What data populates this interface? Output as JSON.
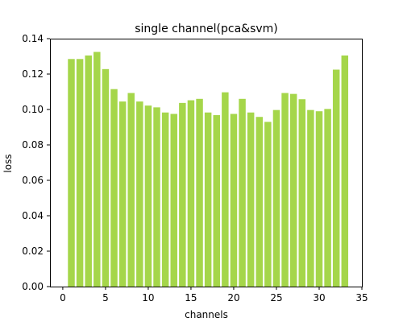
{
  "chart_data": {
    "type": "bar",
    "title": "single channel(pca&svm)",
    "xlabel": "channels",
    "ylabel": "loss",
    "xlim": [
      -1.5,
      35
    ],
    "ylim": [
      0,
      0.14
    ],
    "x": [
      1,
      2,
      3,
      4,
      5,
      6,
      7,
      8,
      9,
      10,
      11,
      12,
      13,
      14,
      15,
      16,
      17,
      18,
      19,
      20,
      21,
      22,
      23,
      24,
      25,
      26,
      27,
      28,
      29,
      30,
      31,
      32,
      33
    ],
    "values": [
      0.1285,
      0.1285,
      0.1305,
      0.1325,
      0.1228,
      0.1115,
      0.1045,
      0.1093,
      0.1045,
      0.1022,
      0.1012,
      0.0983,
      0.0975,
      0.1037,
      0.1052,
      0.106,
      0.0983,
      0.0968,
      0.1097,
      0.0975,
      0.106,
      0.0983,
      0.0958,
      0.093,
      0.0997,
      0.1093,
      0.1088,
      0.1058,
      0.0997,
      0.099,
      0.1003,
      0.1225,
      0.1305
    ],
    "bar_color": "#a5d64a",
    "x_ticks": [
      {
        "value": 0,
        "label": "0"
      },
      {
        "value": 5,
        "label": "5"
      },
      {
        "value": 10,
        "label": "10"
      },
      {
        "value": 15,
        "label": "15"
      },
      {
        "value": 20,
        "label": "20"
      },
      {
        "value": 25,
        "label": "25"
      },
      {
        "value": 30,
        "label": "30"
      },
      {
        "value": 35,
        "label": "35"
      }
    ],
    "y_ticks": [
      {
        "value": 0.0,
        "label": "0.00"
      },
      {
        "value": 0.02,
        "label": "0.02"
      },
      {
        "value": 0.04,
        "label": "0.04"
      },
      {
        "value": 0.06,
        "label": "0.06"
      },
      {
        "value": 0.08,
        "label": "0.08"
      },
      {
        "value": 0.1,
        "label": "0.10"
      },
      {
        "value": 0.12,
        "label": "0.12"
      },
      {
        "value": 0.14,
        "label": "0.14"
      }
    ],
    "grid": false,
    "legend": "none"
  }
}
